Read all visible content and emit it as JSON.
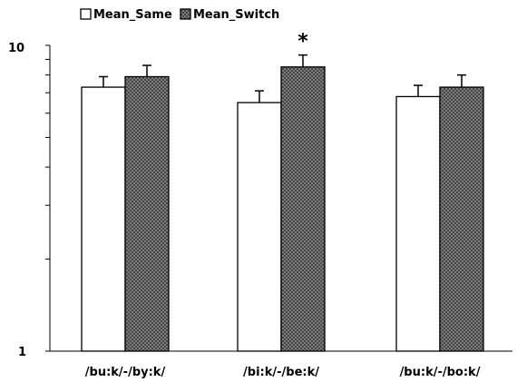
{
  "chart_data": {
    "type": "bar",
    "title": "",
    "xlabel": "",
    "ylabel": "",
    "yscale": "log",
    "ylim": [
      1,
      10
    ],
    "ytick_labels": [
      "1",
      "10"
    ],
    "legend_position": "top-left",
    "categories": [
      "/bu:k/-/by:k/",
      "/bi:k/-/be:k/",
      "/bu:k/-/bo:k/"
    ],
    "series": [
      {
        "name": "Mean_Same",
        "fill": "white",
        "values": [
          7.3,
          6.5,
          6.8
        ],
        "errors": [
          0.6,
          0.6,
          0.6
        ]
      },
      {
        "name": "Mean_Switch",
        "fill": "crosshatch-gray",
        "values": [
          7.9,
          8.5,
          7.3
        ],
        "errors": [
          0.7,
          0.8,
          0.7
        ]
      }
    ],
    "annotations": [
      {
        "text": "*",
        "category_index": 1
      }
    ],
    "colors": {
      "switch_fill": "#7a7a7a",
      "same_fill": "#ffffff",
      "stroke": "#000000"
    }
  }
}
